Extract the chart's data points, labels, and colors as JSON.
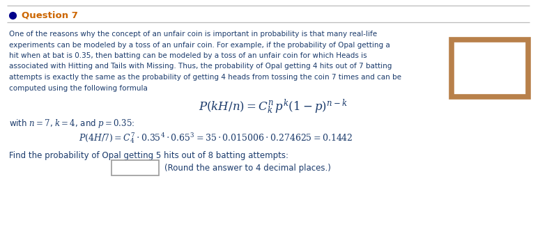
{
  "bg_color": "#ffffff",
  "title_dot_color": "#00008B",
  "title_color": "#CC6600",
  "body_color": "#1a3a6b",
  "formula_color": "#1a3a6b",
  "answer_box_color": "#B8804A",
  "input_box_color": "#999999",
  "line_color": "#bbbbbb",
  "paragraph_lines": [
    "One of the reasons why the concept of an unfair coin is important in probability is that many real-life",
    "experiments can be modeled by a toss of an unfair coin. For example, if the probability of Opal getting a",
    "hit when at bat is 0.35, then batting can be modeled by a toss of an unfair coin for which Heads is",
    "associated with Hitting and Tails with Missing. Thus, the probability of Opal getting 4 hits out of 7 batting",
    "attempts is exactly the same as the probability of getting 4 heads from tossing the coin 7 times and can be",
    "computed using the following formula"
  ],
  "find_line": "Find the probability of Opal getting 5 hits out of 8 batting attempts:",
  "round_note": "(Round the answer to 4 decimal places.)"
}
